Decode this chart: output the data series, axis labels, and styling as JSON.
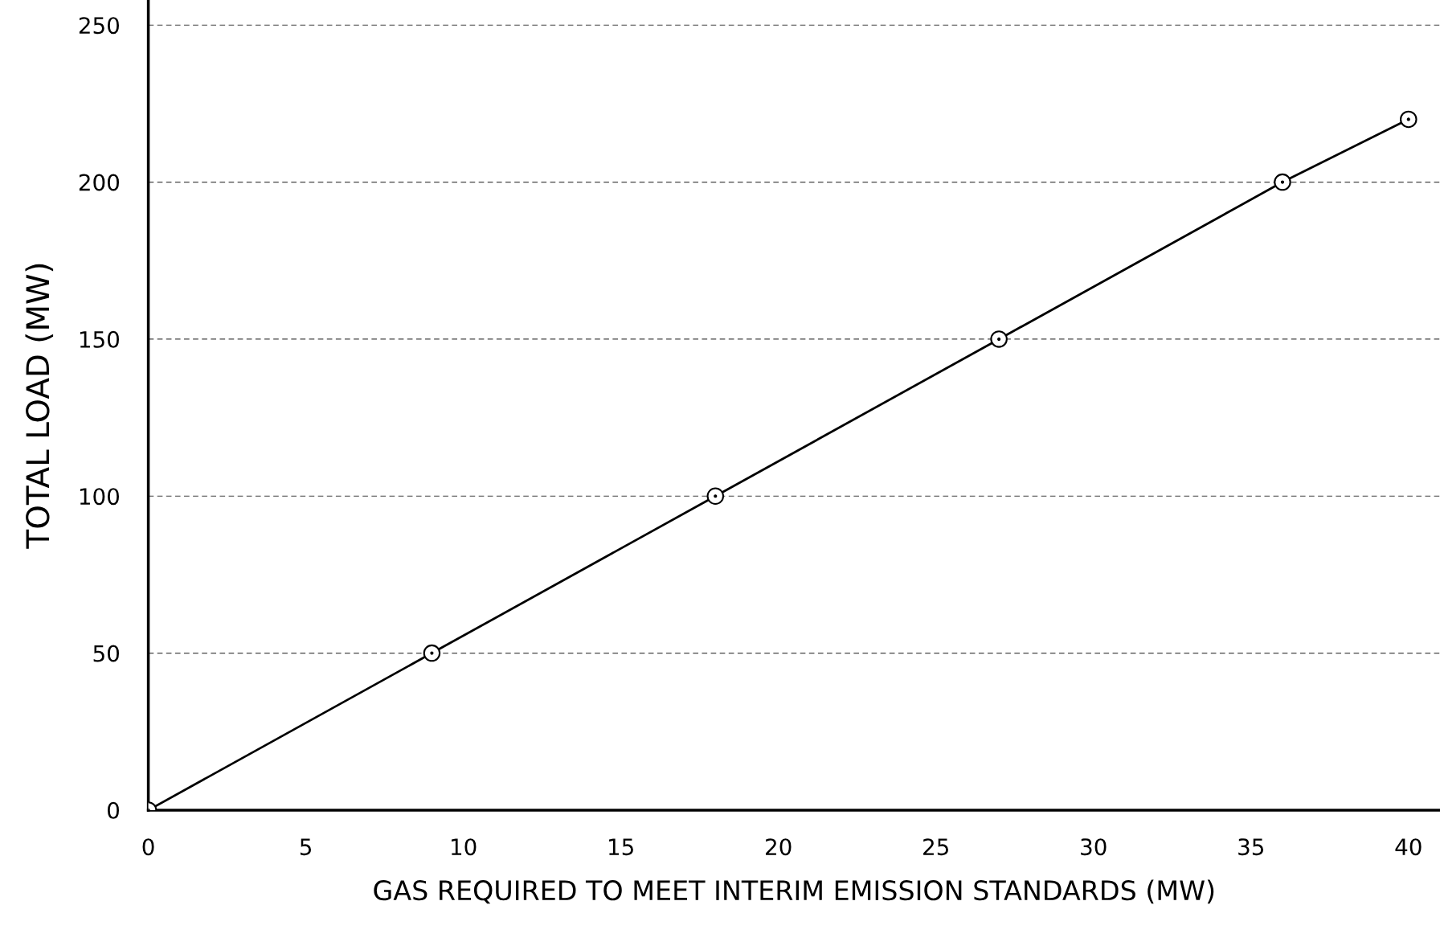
{
  "chart_data": {
    "type": "line",
    "xlabel": "GAS REQUIRED TO MEET INTERIM EMISSION STANDARDS (MW)",
    "ylabel": "TOTAL LOAD (MW)",
    "x": [
      0,
      9,
      18,
      27,
      36,
      40
    ],
    "series": [
      {
        "color": "#000000",
        "values": [
          0,
          50,
          100,
          150,
          200,
          220
        ]
      }
    ],
    "marker": "circle",
    "line_style": "solid",
    "grid": "y",
    "xlim": [
      0,
      41
    ],
    "ylim": [
      0,
      258
    ],
    "xticks": [
      0,
      5,
      10,
      15,
      20,
      25,
      30,
      35,
      40
    ],
    "yticks": [
      0,
      50,
      100,
      150,
      200,
      250
    ]
  }
}
